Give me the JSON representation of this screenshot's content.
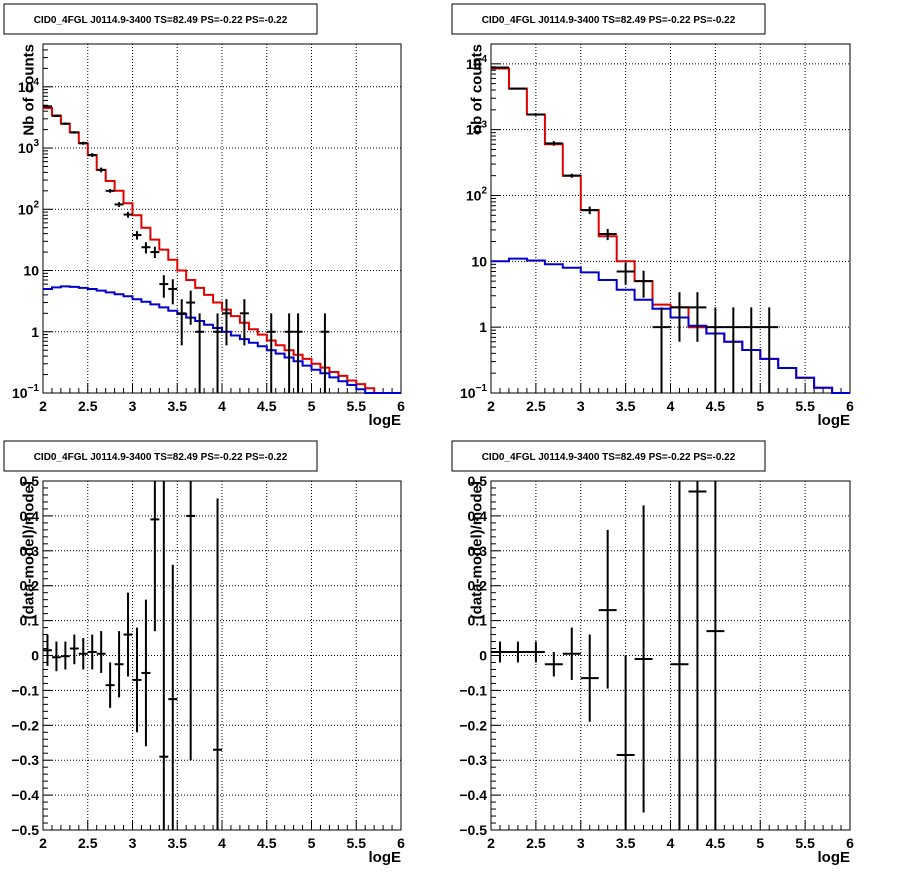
{
  "colors": {
    "data": "#000000",
    "total_model": "#e00000",
    "background_model": "#0000d0"
  },
  "chart_data": [
    {
      "type": "histogram",
      "panel": "top-left",
      "title": "CID0_4FGL J0114.9-3400 TS=82.49 PS=-0.22 PS=-0.22",
      "xlabel": "logE",
      "ylabel": "Nb of counts",
      "xlim": [
        2,
        6
      ],
      "ylim": [
        0.1,
        50000
      ],
      "yscale": "log",
      "grid": true,
      "x_ticks": [
        "2",
        "2.5",
        "3",
        "3.5",
        "4",
        "4.5",
        "5",
        "5.5",
        "6"
      ],
      "y_ticks": [
        {
          "value": 0.1,
          "base": "10",
          "exp": "−1"
        },
        {
          "value": 1,
          "base": "1",
          "exp": ""
        },
        {
          "value": 10,
          "base": "10",
          "exp": ""
        },
        {
          "value": 100,
          "base": "10",
          "exp": "2"
        },
        {
          "value": 1000,
          "base": "10",
          "exp": "3"
        },
        {
          "value": 10000,
          "base": "10",
          "exp": "4"
        }
      ],
      "bin_width": 0.1,
      "series": [
        {
          "role": "total_model",
          "style": "step",
          "bin_start": 2.0,
          "values": [
            4500,
            3400,
            2500,
            1800,
            1200,
            760,
            440,
            290,
            200,
            125,
            80,
            50,
            32,
            22,
            15,
            10,
            7,
            5.2,
            4.0,
            3.0,
            2.3,
            1.8,
            1.4,
            1.1,
            0.9,
            0.72,
            0.6,
            0.5,
            0.42,
            0.36,
            0.3,
            0.26,
            0.22,
            0.19,
            0.16,
            0.14,
            0.12,
            0.1,
            0.1,
            0.1
          ]
        },
        {
          "role": "background_model",
          "style": "step",
          "bin_start": 2.0,
          "values": [
            5.0,
            5.3,
            5.5,
            5.4,
            5.2,
            5.0,
            4.7,
            4.4,
            4.1,
            3.8,
            3.4,
            3.1,
            2.8,
            2.5,
            2.2,
            1.95,
            1.7,
            1.5,
            1.3,
            1.15,
            1.0,
            0.87,
            0.76,
            0.66,
            0.58,
            0.5,
            0.44,
            0.38,
            0.33,
            0.28,
            0.24,
            0.21,
            0.18,
            0.155,
            0.135,
            0.115,
            0.1,
            0.1,
            0.1,
            0.1
          ]
        },
        {
          "role": "data",
          "style": "errorbar",
          "points": [
            {
              "x": 2.05,
              "y": 4800,
              "lo": 4660,
              "hi": 4940
            },
            {
              "x": 2.15,
              "y": 3350,
              "lo": 3230,
              "hi": 3470
            },
            {
              "x": 2.25,
              "y": 2500,
              "lo": 2400,
              "hi": 2600
            },
            {
              "x": 2.35,
              "y": 1800,
              "lo": 1715,
              "hi": 1885
            },
            {
              "x": 2.45,
              "y": 1200,
              "lo": 1130,
              "hi": 1270
            },
            {
              "x": 2.55,
              "y": 770,
              "lo": 715,
              "hi": 825
            },
            {
              "x": 2.65,
              "y": 440,
              "lo": 400,
              "hi": 480
            },
            {
              "x": 2.75,
              "y": 200,
              "lo": 186,
              "hi": 214
            },
            {
              "x": 2.85,
              "y": 120,
              "lo": 109,
              "hi": 131
            },
            {
              "x": 2.95,
              "y": 82,
              "lo": 73,
              "hi": 91
            },
            {
              "x": 3.05,
              "y": 38,
              "lo": 32,
              "hi": 44
            },
            {
              "x": 3.15,
              "y": 24,
              "lo": 19,
              "hi": 29
            },
            {
              "x": 3.25,
              "y": 20,
              "lo": 16,
              "hi": 24.5
            },
            {
              "x": 3.35,
              "y": 6,
              "lo": 3.6,
              "hi": 8.4
            },
            {
              "x": 3.45,
              "y": 5,
              "lo": 2.8,
              "hi": 7.2
            },
            {
              "x": 3.55,
              "y": 2,
              "lo": 0.6,
              "hi": 3.4
            },
            {
              "x": 3.65,
              "y": 3,
              "lo": 1.3,
              "hi": 4.7
            },
            {
              "x": 3.75,
              "y": 1,
              "lo": 0.1,
              "hi": 2.0
            },
            {
              "x": 3.95,
              "y": 1,
              "lo": 0.1,
              "hi": 2.0
            },
            {
              "x": 4.05,
              "y": 2,
              "lo": 0.6,
              "hi": 3.4
            },
            {
              "x": 4.25,
              "y": 2,
              "lo": 0.6,
              "hi": 3.4
            },
            {
              "x": 4.55,
              "y": 1,
              "lo": 0.1,
              "hi": 2.0
            },
            {
              "x": 4.75,
              "y": 1,
              "lo": 0.1,
              "hi": 2.0
            },
            {
              "x": 4.85,
              "y": 1,
              "lo": 0.1,
              "hi": 2.0
            },
            {
              "x": 5.15,
              "y": 1,
              "lo": 0.1,
              "hi": 2.0
            }
          ]
        }
      ]
    },
    {
      "type": "histogram",
      "panel": "top-right",
      "title": "CID0_4FGL J0114.9-3400 TS=82.49 PS=-0.22 PS=-0.22",
      "xlabel": "logE",
      "ylabel": "nb of counts",
      "xlim": [
        2,
        6
      ],
      "ylim": [
        0.1,
        20000
      ],
      "yscale": "log",
      "grid": true,
      "x_ticks": [
        "2",
        "2.5",
        "3",
        "3.5",
        "4",
        "4.5",
        "5",
        "5.5",
        "6"
      ],
      "y_ticks": [
        {
          "value": 0.1,
          "base": "10",
          "exp": "−1"
        },
        {
          "value": 1,
          "base": "1",
          "exp": ""
        },
        {
          "value": 10,
          "base": "10",
          "exp": ""
        },
        {
          "value": 100,
          "base": "10",
          "exp": "2"
        },
        {
          "value": 1000,
          "base": "10",
          "exp": "3"
        },
        {
          "value": 10000,
          "base": "10",
          "exp": "4"
        }
      ],
      "bin_width": 0.2,
      "series": [
        {
          "role": "total_model",
          "style": "step",
          "bin_start": 2.0,
          "values": [
            8500,
            4200,
            1700,
            600,
            200,
            60,
            24,
            10,
            5,
            2.2,
            2.0,
            1.0,
            0.8,
            0.6,
            0.45,
            0.33,
            0.24,
            0.17,
            0.12,
            0.1
          ]
        },
        {
          "role": "background_model",
          "style": "step",
          "bin_start": 2.0,
          "values": [
            10,
            11,
            10.3,
            9.0,
            8.0,
            6.8,
            5.2,
            3.7,
            2.6,
            1.9,
            1.4,
            1.05,
            0.8,
            0.6,
            0.45,
            0.33,
            0.24,
            0.17,
            0.12,
            0.1
          ]
        },
        {
          "role": "data",
          "style": "errorbar",
          "points": [
            {
              "x": 2.1,
              "y": 8800,
              "lo": 8600,
              "hi": 9000
            },
            {
              "x": 2.3,
              "y": 4200,
              "lo": 4070,
              "hi": 4330
            },
            {
              "x": 2.5,
              "y": 1700,
              "lo": 1620,
              "hi": 1780
            },
            {
              "x": 2.7,
              "y": 620,
              "lo": 570,
              "hi": 670
            },
            {
              "x": 2.9,
              "y": 200,
              "lo": 186,
              "hi": 214
            },
            {
              "x": 3.1,
              "y": 60,
              "lo": 52,
              "hi": 68
            },
            {
              "x": 3.3,
              "y": 26,
              "lo": 21,
              "hi": 31
            },
            {
              "x": 3.5,
              "y": 7,
              "lo": 4.4,
              "hi": 9.6
            },
            {
              "x": 3.7,
              "y": 5,
              "lo": 2.8,
              "hi": 7.2
            },
            {
              "x": 3.9,
              "y": 1,
              "lo": 0.1,
              "hi": 2.0
            },
            {
              "x": 4.1,
              "y": 2,
              "lo": 0.6,
              "hi": 3.4
            },
            {
              "x": 4.3,
              "y": 2,
              "lo": 0.6,
              "hi": 3.4
            },
            {
              "x": 4.5,
              "y": 1,
              "lo": 0.1,
              "hi": 2.0
            },
            {
              "x": 4.7,
              "y": 1,
              "lo": 0.1,
              "hi": 2.0
            },
            {
              "x": 4.9,
              "y": 1,
              "lo": 0.1,
              "hi": 2.0
            },
            {
              "x": 5.1,
              "y": 1,
              "lo": 0.1,
              "hi": 2.0
            }
          ]
        }
      ]
    },
    {
      "type": "scatter",
      "panel": "bottom-left",
      "title": "CID0_4FGL J0114.9-3400 TS=82.49 PS=-0.22 PS=-0.22",
      "xlabel": "logE",
      "ylabel": "(data-model)/model",
      "xlim": [
        2,
        6
      ],
      "ylim": [
        -0.5,
        0.5
      ],
      "yscale": "linear",
      "grid": true,
      "x_ticks": [
        "2",
        "2.5",
        "3",
        "3.5",
        "4",
        "4.5",
        "5",
        "5.5",
        "6"
      ],
      "y_ticks": [
        {
          "value": -0.5,
          "label": "−0.5"
        },
        {
          "value": -0.4,
          "label": "−0.4"
        },
        {
          "value": -0.3,
          "label": "−0.3"
        },
        {
          "value": -0.2,
          "label": "−0.2"
        },
        {
          "value": -0.1,
          "label": "−0.1"
        },
        {
          "value": 0,
          "label": "0"
        },
        {
          "value": 0.1,
          "label": "0.1"
        },
        {
          "value": 0.2,
          "label": "0.2"
        },
        {
          "value": 0.3,
          "label": "0.3"
        },
        {
          "value": 0.4,
          "label": "0.4"
        },
        {
          "value": 0.5,
          "label": "0.5"
        }
      ],
      "bin_width": 0.1,
      "series": [
        {
          "role": "data",
          "style": "errorbar",
          "points": [
            {
              "x": 2.05,
              "y": 0.015,
              "lo": -0.03,
              "hi": 0.06
            },
            {
              "x": 2.15,
              "y": -0.005,
              "lo": -0.045,
              "hi": 0.04
            },
            {
              "x": 2.25,
              "y": -0.002,
              "lo": -0.04,
              "hi": 0.04
            },
            {
              "x": 2.35,
              "y": 0.02,
              "lo": -0.025,
              "hi": 0.06
            },
            {
              "x": 2.45,
              "y": 0.005,
              "lo": -0.04,
              "hi": 0.05
            },
            {
              "x": 2.55,
              "y": 0.01,
              "lo": -0.04,
              "hi": 0.06
            },
            {
              "x": 2.65,
              "y": 0.005,
              "lo": -0.05,
              "hi": 0.07
            },
            {
              "x": 2.75,
              "y": -0.085,
              "lo": -0.15,
              "hi": -0.02
            },
            {
              "x": 2.85,
              "y": -0.025,
              "lo": -0.12,
              "hi": 0.07
            },
            {
              "x": 2.95,
              "y": 0.06,
              "lo": -0.06,
              "hi": 0.18
            },
            {
              "x": 3.05,
              "y": -0.07,
              "lo": -0.22,
              "hi": 0.08
            },
            {
              "x": 3.15,
              "y": -0.05,
              "lo": -0.26,
              "hi": 0.16
            },
            {
              "x": 3.25,
              "y": 0.39,
              "lo": 0.07,
              "hi": 0.5
            },
            {
              "x": 3.35,
              "y": -0.29,
              "lo": -0.5,
              "hi": 0.5
            },
            {
              "x": 3.45,
              "y": -0.125,
              "lo": -0.5,
              "hi": 0.26
            },
            {
              "x": 3.65,
              "y": 0.4,
              "lo": -0.3,
              "hi": 0.5
            },
            {
              "x": 3.95,
              "y": -0.27,
              "lo": -0.5,
              "hi": 0.45
            }
          ]
        }
      ]
    },
    {
      "type": "scatter",
      "panel": "bottom-right",
      "title": "CID0_4FGL J0114.9-3400 TS=82.49 PS=-0.22 PS=-0.22",
      "xlabel": "logE",
      "ylabel": "(data-model)/model",
      "xlim": [
        2,
        6
      ],
      "ylim": [
        -0.5,
        0.5
      ],
      "yscale": "linear",
      "grid": true,
      "x_ticks": [
        "2",
        "2.5",
        "3",
        "3.5",
        "4",
        "4.5",
        "5",
        "5.5",
        "6"
      ],
      "y_ticks": [
        {
          "value": -0.5,
          "label": "−0.5"
        },
        {
          "value": -0.4,
          "label": "−0.4"
        },
        {
          "value": -0.3,
          "label": "−0.3"
        },
        {
          "value": -0.2,
          "label": "−0.2"
        },
        {
          "value": -0.1,
          "label": "−0.1"
        },
        {
          "value": 0,
          "label": "0"
        },
        {
          "value": 0.1,
          "label": "0.1"
        },
        {
          "value": 0.2,
          "label": "0.2"
        },
        {
          "value": 0.3,
          "label": "0.3"
        },
        {
          "value": 0.4,
          "label": "0.4"
        },
        {
          "value": 0.5,
          "label": "0.5"
        }
      ],
      "bin_width": 0.2,
      "series": [
        {
          "role": "data",
          "style": "errorbar",
          "points": [
            {
              "x": 2.1,
              "y": 0.01,
              "lo": -0.02,
              "hi": 0.04
            },
            {
              "x": 2.3,
              "y": 0.01,
              "lo": -0.02,
              "hi": 0.04
            },
            {
              "x": 2.5,
              "y": 0.01,
              "lo": -0.02,
              "hi": 0.04
            },
            {
              "x": 2.7,
              "y": -0.025,
              "lo": -0.06,
              "hi": 0.01
            },
            {
              "x": 2.9,
              "y": 0.005,
              "lo": -0.07,
              "hi": 0.08
            },
            {
              "x": 3.1,
              "y": -0.065,
              "lo": -0.19,
              "hi": 0.06
            },
            {
              "x": 3.3,
              "y": 0.13,
              "lo": -0.095,
              "hi": 0.36
            },
            {
              "x": 3.5,
              "y": -0.285,
              "lo": -0.5,
              "hi": 0.0
            },
            {
              "x": 3.7,
              "y": -0.01,
              "lo": -0.45,
              "hi": 0.43
            },
            {
              "x": 4.1,
              "y": -0.025,
              "lo": -0.5,
              "hi": 0.5
            },
            {
              "x": 4.3,
              "y": 0.47,
              "lo": -0.5,
              "hi": 0.5
            },
            {
              "x": 4.5,
              "y": 0.07,
              "lo": -0.5,
              "hi": 0.5
            }
          ]
        }
      ]
    }
  ]
}
